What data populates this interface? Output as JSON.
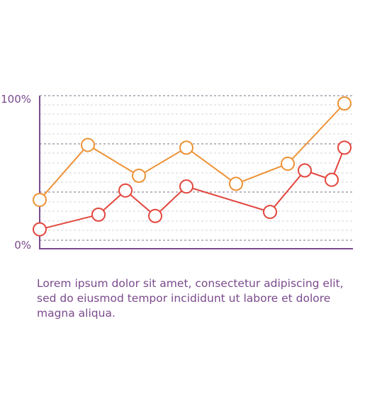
{
  "chart_data": {
    "type": "line",
    "x": [
      1,
      2,
      3,
      4,
      5,
      6,
      7,
      8,
      9,
      10
    ],
    "ylim": [
      0,
      100
    ],
    "yticks": [
      "100%",
      "0%"
    ],
    "grid": true,
    "series": [
      {
        "color": "#ee9236",
        "x": [
          1,
          2,
          3,
          5,
          7,
          8,
          10
        ],
        "values": [
          28,
          69,
          46,
          67,
          40,
          55,
          100
        ]
      },
      {
        "color": "#e2463e",
        "x": [
          1,
          2,
          3,
          4,
          5,
          7,
          8,
          9,
          10
        ],
        "values": [
          6,
          17,
          35,
          16,
          38,
          19,
          50,
          43,
          67
        ]
      }
    ],
    "colors": {
      "axis": "#7a4a8c",
      "grid": "#9a8aa6",
      "text": "#7a4a8c"
    }
  },
  "caption": "Lorem ipsum dolor sit amet, consectetur adipiscing elit, sed do eiusmod tempor incididunt ut labore et dolore magna aliqua."
}
